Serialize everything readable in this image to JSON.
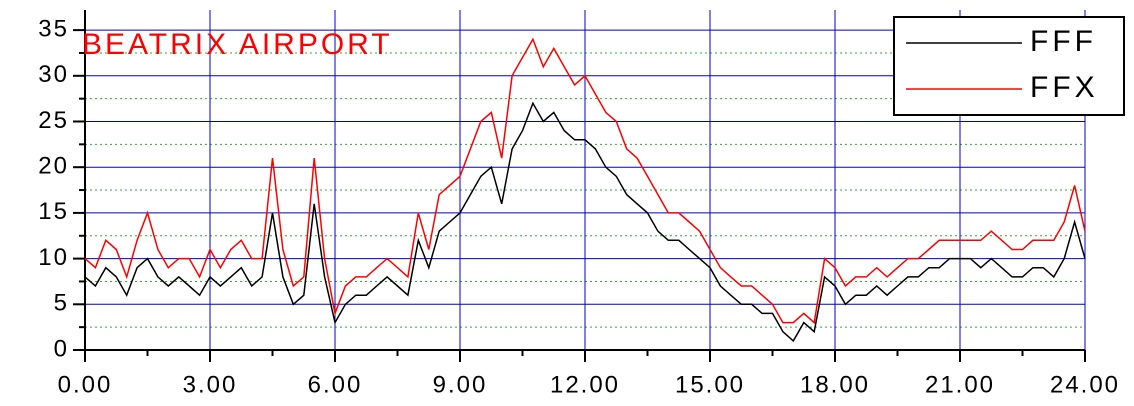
{
  "chart_data": {
    "type": "line",
    "title": "BEATRIX AIRPORT",
    "title_color": "#ff0000",
    "x": [
      0,
      0.25,
      0.5,
      0.75,
      1,
      1.25,
      1.5,
      1.75,
      2,
      2.25,
      2.5,
      2.75,
      3,
      3.25,
      3.5,
      3.75,
      4,
      4.25,
      4.5,
      4.75,
      5,
      5.25,
      5.5,
      5.75,
      6,
      6.25,
      6.5,
      6.75,
      7,
      7.25,
      7.5,
      7.75,
      8,
      8.25,
      8.5,
      8.75,
      9,
      9.25,
      9.5,
      9.75,
      10,
      10.25,
      10.5,
      10.75,
      11,
      11.25,
      11.5,
      11.75,
      12,
      12.25,
      12.5,
      12.75,
      13,
      13.25,
      13.5,
      13.75,
      14,
      14.25,
      14.5,
      14.75,
      15,
      15.25,
      15.5,
      15.75,
      16,
      16.25,
      16.5,
      16.75,
      17,
      17.25,
      17.5,
      17.75,
      18,
      18.25,
      18.5,
      18.75,
      19,
      19.25,
      19.5,
      19.75,
      20,
      20.25,
      20.5,
      20.75,
      21,
      21.25,
      21.5,
      21.75,
      22,
      22.25,
      22.5,
      22.75,
      23,
      23.25,
      23.5,
      23.75,
      24
    ],
    "series": [
      {
        "name": "FFF",
        "color": "#000000",
        "values": [
          8,
          7,
          9,
          8,
          6,
          9,
          10,
          8,
          7,
          8,
          7,
          6,
          8,
          7,
          8,
          9,
          7,
          8,
          15,
          8,
          5,
          6,
          16,
          8,
          3,
          5,
          6,
          6,
          7,
          8,
          7,
          6,
          12,
          9,
          13,
          14,
          15,
          17,
          19,
          20,
          16,
          22,
          24,
          27,
          25,
          26,
          24,
          23,
          23,
          22,
          20,
          19,
          17,
          16,
          15,
          13,
          12,
          12,
          11,
          10,
          9,
          7,
          6,
          5,
          5,
          4,
          4,
          2,
          1,
          3,
          2,
          8,
          7,
          5,
          6,
          6,
          7,
          6,
          7,
          8,
          8,
          9,
          9,
          10,
          10,
          10,
          9,
          10,
          9,
          8,
          8,
          9,
          9,
          8,
          10,
          14,
          10
        ]
      },
      {
        "name": "FFX",
        "color": "#ff0000",
        "values": [
          10,
          9,
          12,
          11,
          8,
          12,
          15,
          11,
          9,
          10,
          10,
          8,
          11,
          9,
          11,
          12,
          10,
          10,
          21,
          11,
          7,
          8,
          21,
          10,
          4,
          7,
          8,
          8,
          9,
          10,
          9,
          8,
          15,
          11,
          17,
          18,
          19,
          22,
          25,
          26,
          21,
          30,
          32,
          34,
          31,
          33,
          31,
          29,
          30,
          28,
          26,
          25,
          22,
          21,
          19,
          17,
          15,
          15,
          14,
          13,
          11,
          9,
          8,
          7,
          7,
          6,
          5,
          3,
          3,
          4,
          3,
          10,
          9,
          7,
          8,
          8,
          9,
          8,
          9,
          10,
          10,
          11,
          12,
          12,
          12,
          12,
          12,
          13,
          12,
          11,
          11,
          12,
          12,
          12,
          14,
          18,
          13
        ]
      }
    ],
    "xlim": [
      0,
      24
    ],
    "xticks": [
      {
        "value": 0,
        "label": "0.00"
      },
      {
        "value": 3,
        "label": "3.00"
      },
      {
        "value": 6,
        "label": "6.00"
      },
      {
        "value": 9,
        "label": "9.00"
      },
      {
        "value": 12,
        "label": "12.00"
      },
      {
        "value": 15,
        "label": "15.00"
      },
      {
        "value": 18,
        "label": "18.00"
      },
      {
        "value": 21,
        "label": "21.00"
      },
      {
        "value": 24,
        "label": "24.00"
      }
    ],
    "x_minor_ticks": [
      1.5,
      4.5,
      7.5,
      10.5,
      13.5,
      16.5,
      19.5,
      22.5
    ],
    "ylim": [
      0,
      37.2
    ],
    "yticks": [
      0,
      5,
      10,
      15,
      20,
      25,
      30,
      35
    ],
    "y_minor_ticks": [
      2.5,
      7.5,
      12.5,
      17.5,
      22.5,
      27.5,
      32.5
    ],
    "grid": true,
    "grid_color": "#0000cc",
    "minor_grid_color": "#33aa33",
    "legend": "upper right"
  }
}
